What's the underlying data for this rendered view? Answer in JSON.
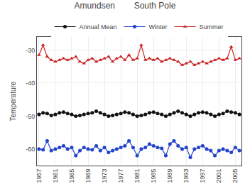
{
  "chart_data": {
    "type": "line",
    "title": "Amundsen        South Pole",
    "y_label": "Temperature",
    "x": [
      1957,
      1958,
      1959,
      1960,
      1961,
      1962,
      1963,
      1964,
      1965,
      1966,
      1967,
      1968,
      1969,
      1970,
      1971,
      1972,
      1973,
      1974,
      1975,
      1976,
      1977,
      1978,
      1979,
      1980,
      1981,
      1982,
      1983,
      1984,
      1985,
      1986,
      1987,
      1988,
      1989,
      1990,
      1991,
      1992,
      1993,
      1994,
      1995,
      1996,
      1997,
      1998,
      1999,
      2000,
      2001,
      2002,
      2003,
      2004,
      2005,
      2006
    ],
    "series": [
      {
        "name": "Annual Mean",
        "color": "#111111",
        "marker": "circle",
        "values": [
          -49.5,
          -49.0,
          -49.2,
          -49.8,
          -49.5,
          -49.0,
          -48.8,
          -49.2,
          -49.5,
          -50.0,
          -49.8,
          -49.5,
          -49.2,
          -49.0,
          -48.5,
          -49.0,
          -49.5,
          -50.0,
          -49.8,
          -49.5,
          -49.2,
          -48.8,
          -49.0,
          -49.5,
          -50.0,
          -49.8,
          -49.5,
          -49.0,
          -48.8,
          -49.2,
          -49.5,
          -50.0,
          -49.5,
          -49.0,
          -48.5,
          -49.0,
          -49.5,
          -50.0,
          -49.5,
          -49.0,
          -48.8,
          -49.0,
          -49.5,
          -50.0,
          -49.5,
          -49.2,
          -48.5,
          -48.8,
          -49.0,
          -49.5
        ]
      },
      {
        "name": "Winter",
        "color": "#2244cc",
        "marker": "circle",
        "values": [
          -60.0,
          -60.2,
          -57.5,
          -60.5,
          -60.0,
          -59.5,
          -59.0,
          -60.0,
          -59.5,
          -62.0,
          -60.5,
          -59.5,
          -60.0,
          -60.2,
          -59.0,
          -60.5,
          -59.5,
          -61.0,
          -60.5,
          -60.0,
          -59.5,
          -59.0,
          -57.5,
          -59.5,
          -62.0,
          -60.0,
          -59.5,
          -58.5,
          -59.0,
          -59.5,
          -59.8,
          -62.0,
          -58.5,
          -57.5,
          -59.0,
          -60.0,
          -59.5,
          -62.5,
          -60.0,
          -59.5,
          -59.0,
          -60.0,
          -60.5,
          -62.0,
          -60.5,
          -60.0,
          -60.5,
          -61.0,
          -59.5,
          -60.5
        ]
      },
      {
        "name": "Summer",
        "color": "#cc2222",
        "marker": "triangle-up",
        "values": [
          -31.5,
          -28.5,
          -32.0,
          -33.0,
          -33.5,
          -33.0,
          -32.5,
          -33.0,
          -32.5,
          -32.0,
          -33.5,
          -34.0,
          -33.0,
          -32.5,
          -33.5,
          -33.0,
          -32.5,
          -32.0,
          -33.5,
          -32.5,
          -32.0,
          -33.0,
          -31.5,
          -33.0,
          -32.5,
          -28.5,
          -33.0,
          -32.5,
          -33.0,
          -32.5,
          -33.5,
          -33.0,
          -32.5,
          -33.0,
          -33.5,
          -34.5,
          -34.0,
          -33.5,
          -34.5,
          -34.0,
          -33.5,
          -34.0,
          -33.5,
          -33.0,
          -32.5,
          -33.0,
          -32.5,
          -29.0,
          -33.0,
          -32.5
        ]
      }
    ],
    "xlim": [
      1956.5,
      2006.5
    ],
    "xticks": [
      1957,
      1961,
      1965,
      1969,
      1973,
      1977,
      1981,
      1985,
      1989,
      1993,
      1997,
      2001,
      2005
    ],
    "ylim": [
      -65,
      -26
    ],
    "yticks": [
      -30,
      -40,
      -50,
      -60
    ],
    "grid": true,
    "legend": "top"
  }
}
